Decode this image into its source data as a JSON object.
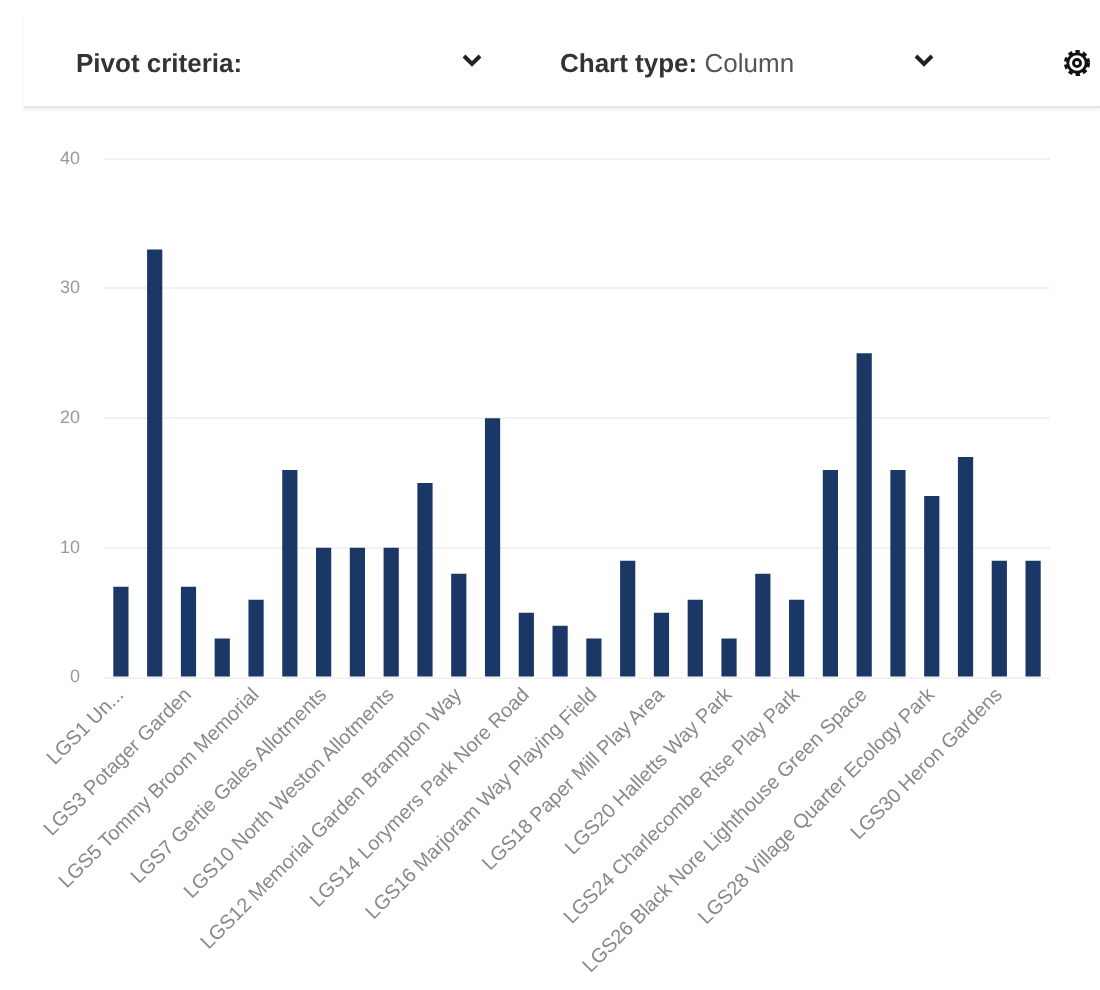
{
  "chart_data": {
    "type": "bar",
    "annotations": [
      "Pivot criteria:",
      "Chart type:",
      "Column"
    ],
    "categories": [
      "LGS1 Un...",
      null,
      "LGS3 Potager Garden",
      null,
      "LGS5 Tommy Broom Memorial",
      null,
      "LGS7 Gertie Gales Allotments",
      null,
      "LGS10 North Weston Allotments",
      null,
      "LGS12 Memorial Garden Brampton Way",
      null,
      "LGS14 Lorymers Park Nore Road",
      null,
      "LGS16 Marjoram Way Playing Field",
      null,
      "LGS18 Paper Mill Play Area",
      null,
      "LGS20 Halletts Way Park",
      null,
      "LGS24 Charlecombe Rise Play Park",
      null,
      "LGS26 Black Nore Lighthouse Green Space",
      null,
      "LGS28 Village Quarter Ecology Park",
      null,
      "LGS30 Heron Gardens",
      null
    ],
    "values": [
      7,
      33,
      7,
      3,
      6,
      16,
      10,
      10,
      10,
      15,
      8,
      20,
      5,
      4,
      3,
      9,
      5,
      6,
      3,
      8,
      6,
      16,
      25,
      16,
      14,
      17,
      9,
      9
    ],
    "color": "#1b3766",
    "ylim": [
      0,
      40
    ],
    "yticks": [
      0,
      10,
      20,
      30,
      40
    ],
    "grid": "y"
  }
}
